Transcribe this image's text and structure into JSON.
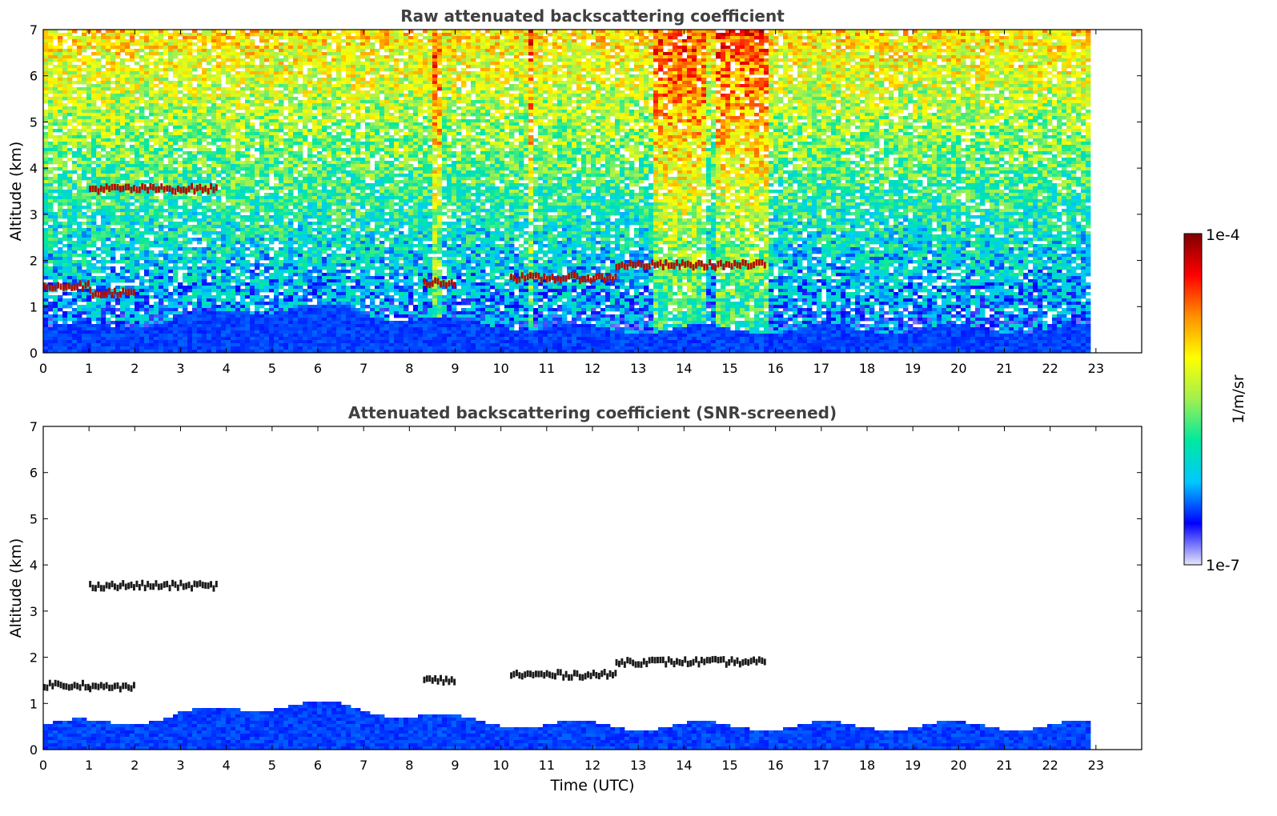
{
  "chart_data": [
    {
      "type": "heatmap",
      "title": "Raw attenuated backscattering coefficient",
      "xlabel": "",
      "ylabel": "Altitude (km)",
      "xlim": [
        0,
        24
      ],
      "ylim": [
        0,
        7
      ],
      "xticks": [
        "0",
        "1",
        "2",
        "3",
        "4",
        "5",
        "6",
        "7",
        "8",
        "9",
        "10",
        "11",
        "12",
        "13",
        "14",
        "15",
        "16",
        "17",
        "18",
        "19",
        "20",
        "21",
        "22",
        "23"
      ],
      "yticks": [
        "0",
        "1",
        "2",
        "3",
        "4",
        "5",
        "6",
        "7"
      ],
      "data_end_time": 22.8,
      "screened": false,
      "cloud_layers": [
        {
          "t0": 0.0,
          "t1": 1.0,
          "alt": 1.45
        },
        {
          "t0": 1.0,
          "t1": 2.0,
          "alt": 1.3
        },
        {
          "t0": 1.0,
          "t1": 3.8,
          "alt": 3.55
        },
        {
          "t0": 8.3,
          "t1": 9.0,
          "alt": 1.52
        },
        {
          "t0": 10.2,
          "t1": 12.5,
          "alt": 1.62
        },
        {
          "t0": 12.5,
          "t1": 15.8,
          "alt": 1.9
        }
      ]
    },
    {
      "type": "heatmap",
      "title": "Attenuated backscattering coefficient (SNR-screened)",
      "xlabel": "Time (UTC)",
      "ylabel": "Altitude (km)",
      "xlim": [
        0,
        24
      ],
      "ylim": [
        0,
        7
      ],
      "xticks": [
        "0",
        "1",
        "2",
        "3",
        "4",
        "5",
        "6",
        "7",
        "8",
        "9",
        "10",
        "11",
        "12",
        "13",
        "14",
        "15",
        "16",
        "17",
        "18",
        "19",
        "20",
        "21",
        "22",
        "23"
      ],
      "yticks": [
        "0",
        "1",
        "2",
        "3",
        "4",
        "5",
        "6",
        "7"
      ],
      "data_end_time": 22.8,
      "screened": true,
      "cloud_layers": [
        {
          "t0": 0.0,
          "t1": 1.0,
          "alt": 1.4
        },
        {
          "t0": 1.0,
          "t1": 2.0,
          "alt": 1.35
        },
        {
          "t0": 1.0,
          "t1": 3.8,
          "alt": 3.55
        },
        {
          "t0": 8.3,
          "t1": 9.0,
          "alt": 1.5
        },
        {
          "t0": 10.2,
          "t1": 12.5,
          "alt": 1.62
        },
        {
          "t0": 12.5,
          "t1": 15.8,
          "alt": 1.9
        }
      ]
    }
  ],
  "colorbar": {
    "label": "1/m/sr",
    "max_label": "1e-4",
    "min_label": "1e-7",
    "colormap": [
      "#e6e6fa",
      "#0000ff",
      "#00c8ff",
      "#00e8a0",
      "#a0f050",
      "#ffff00",
      "#ff9000",
      "#ff0000",
      "#800000"
    ]
  }
}
